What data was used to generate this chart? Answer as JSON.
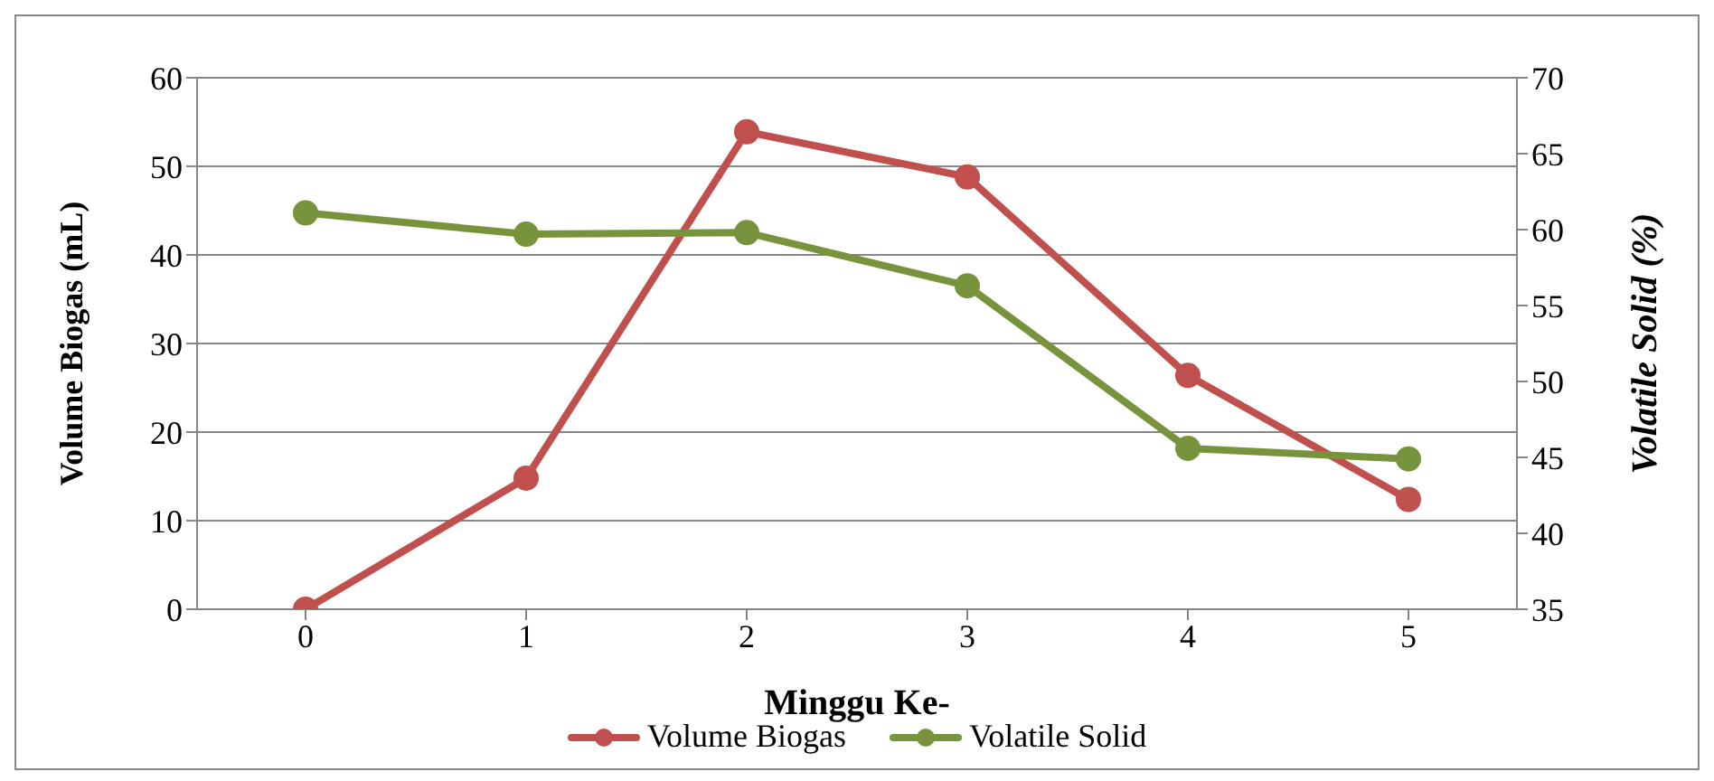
{
  "chart_data": {
    "type": "line",
    "xlabel": "Minggu Ke-",
    "ylabel": "Volume Biogas (mL)",
    "y2label": "Volatile Solid (%)",
    "categories": [
      "0",
      "1",
      "2",
      "3",
      "4",
      "5"
    ],
    "series": [
      {
        "name": "Volume Biogas",
        "color": "#c0504d",
        "values": [
          0,
          14.8,
          53.9,
          48.8,
          26.4,
          12.4
        ]
      },
      {
        "name": "Volatile Solid",
        "color": "#77933c",
        "axis": "y2",
        "values": [
          61.1,
          59.7,
          59.8,
          56.3,
          45.6,
          44.9
        ]
      }
    ],
    "ylim": [
      0,
      60
    ],
    "yticks": [
      0,
      10,
      20,
      30,
      40,
      50,
      60
    ],
    "y2lim": [
      35,
      70
    ],
    "y2ticks": [
      35,
      40,
      45,
      50,
      55,
      60,
      65,
      70
    ],
    "grid": "y",
    "legend": "bottom",
    "marker": "circle",
    "line_style": "solid"
  }
}
